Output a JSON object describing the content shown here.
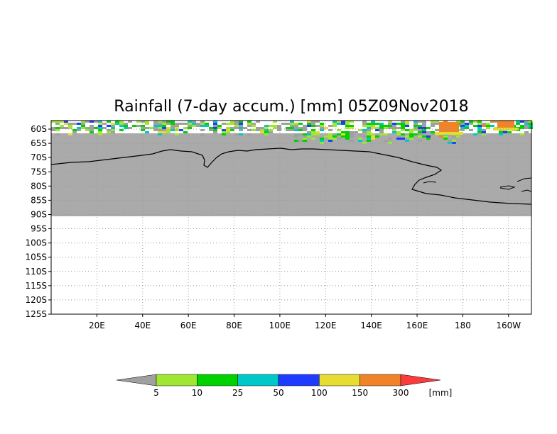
{
  "title": "Rainfall (7-day accum.) [mm] 05Z09Nov2018",
  "map": {
    "lon_range": [
      0,
      210
    ],
    "lat_range": [
      -57,
      -125
    ],
    "lat_ticks": [
      "60S",
      "65S",
      "70S",
      "75S",
      "80S",
      "85S",
      "90S",
      "95S",
      "100S",
      "105S",
      "110S",
      "115S",
      "120S",
      "125S"
    ],
    "lon_ticks": [
      "20E",
      "40E",
      "60E",
      "80E",
      "100E",
      "120E",
      "140E",
      "160E",
      "180",
      "160W"
    ],
    "land_color": "#aaaaaa",
    "coastline_color": "#000000",
    "gridline_style": "dotted"
  },
  "legend": {
    "unit": "[mm]",
    "colors": [
      "#a0a0a0",
      "#a0e632",
      "#00d200",
      "#00c8c8",
      "#1e3cff",
      "#e6dc32",
      "#f08228",
      "#fa3c3c"
    ],
    "labels": [
      "5",
      "10",
      "25",
      "50",
      "100",
      "150",
      "300"
    ]
  }
}
